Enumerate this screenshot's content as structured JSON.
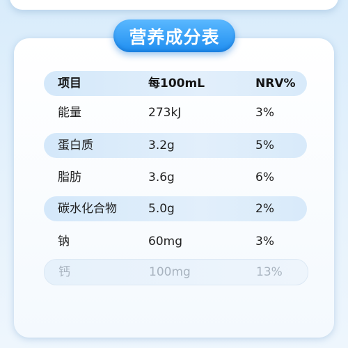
{
  "title": "营养成分表",
  "header": {
    "item": "项目",
    "per": "每100mL",
    "nrv": "NRV%"
  },
  "rows": [
    {
      "name": "能量",
      "amount": "273kJ",
      "nrv": "3%"
    },
    {
      "name": "蛋白质",
      "amount": "3.2g",
      "nrv": "5%"
    },
    {
      "name": "脂肪",
      "amount": "3.6g",
      "nrv": "6%"
    },
    {
      "name": "碳水化合物",
      "amount": "5.0g",
      "nrv": "2%"
    },
    {
      "name": "钠",
      "amount": "60mg",
      "nrv": "3%"
    },
    {
      "name": "钙",
      "amount": "100mg",
      "nrv": "13%"
    }
  ],
  "colors": {
    "title_pill": "#1f8ef0",
    "row_shade": "#d4e8fa",
    "background": "#d9ecfb",
    "faded_text": "#a8b3bf"
  }
}
